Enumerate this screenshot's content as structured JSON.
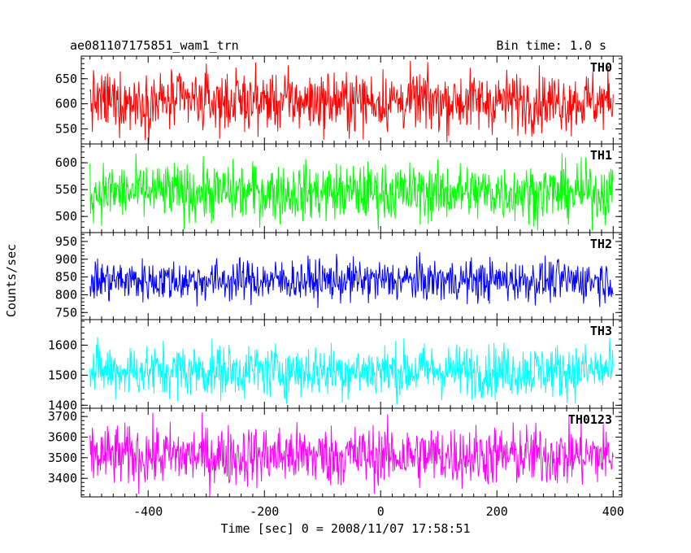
{
  "header": {
    "title": "ae081107175851_wam1_trn",
    "bin_time": "Bin time: 1.0 s"
  },
  "chart_data": {
    "type": "line",
    "title": "ae081107175851_wam1_trn",
    "subtitle": "Bin time: 1.0 s",
    "xlabel": "Time [sec] 0 = 2008/11/07 17:58:51",
    "ylabel": "Counts/sec",
    "xlim": [
      -515,
      415
    ],
    "xticks": [
      -400,
      -200,
      0,
      200,
      400
    ],
    "grid": false,
    "panels": [
      {
        "name": "TH0",
        "color": "#ff0000",
        "ylim": [
          520,
          695
        ],
        "yticks": [
          550,
          600,
          650
        ],
        "mean": 605,
        "noise": 30,
        "x_range": [
          -500,
          400
        ],
        "bin": 1.0
      },
      {
        "name": "TH1",
        "color": "#00ff00",
        "ylim": [
          470,
          635
        ],
        "yticks": [
          500,
          550,
          600
        ],
        "mean": 545,
        "noise": 27,
        "x_range": [
          -500,
          400
        ],
        "bin": 1.0
      },
      {
        "name": "TH2",
        "color": "#0000ff",
        "ylim": [
          730,
          975
        ],
        "yticks": [
          750,
          800,
          850,
          900,
          950
        ],
        "mean": 840,
        "noise": 30,
        "x_range": [
          -500,
          400
        ],
        "bin": 1.0
      },
      {
        "name": "TH3",
        "color": "#00ffff",
        "ylim": [
          1390,
          1685
        ],
        "yticks": [
          1400,
          1500,
          1600
        ],
        "mean": 1515,
        "noise": 45,
        "x_range": [
          -500,
          400
        ],
        "bin": 1.0
      },
      {
        "name": "TH0123",
        "color": "#ff00ff",
        "ylim": [
          3310,
          3740
        ],
        "yticks": [
          3400,
          3500,
          3600,
          3700
        ],
        "mean": 3510,
        "noise": 75,
        "x_range": [
          -500,
          400
        ],
        "bin": 1.0
      }
    ]
  }
}
